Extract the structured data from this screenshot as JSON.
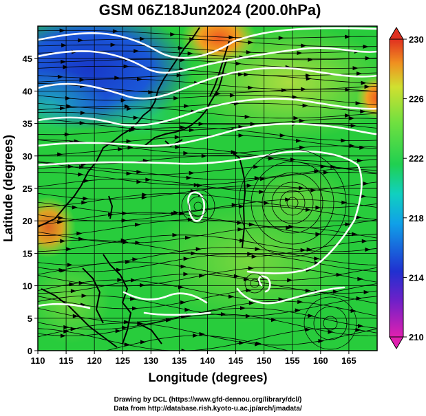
{
  "title": "GSM 06Z18Jun2024 (200.0hPa)",
  "xlabel": "Longitude (degrees)",
  "ylabel": "Latitude  (degrees)",
  "credits": [
    "Drawing by DCL (https://www.gfd-dennou.org/library/dcl/)",
    "Data from http://database.rish.kyoto-u.ac.jp/arch/jmadata/"
  ],
  "chart_data": {
    "type": "heatmap",
    "xlim": [
      110,
      170
    ],
    "ylim": [
      0,
      50
    ],
    "x_ticks": [
      "110",
      "115",
      "120",
      "125",
      "130",
      "135",
      "140",
      "145",
      "150",
      "155",
      "160",
      "165"
    ],
    "y_ticks": [
      "0",
      "5",
      "10",
      "15",
      "20",
      "25",
      "30",
      "35",
      "40",
      "45"
    ],
    "grid": true,
    "colorbar": {
      "range": [
        210,
        230
      ],
      "ticks": [
        "210",
        "214",
        "218",
        "222",
        "226",
        "230"
      ],
      "colors": [
        "#e020b0",
        "#3020c0",
        "#1070e0",
        "#10c0d8",
        "#20d050",
        "#60e040",
        "#b0e040",
        "#f0a020",
        "#e04020"
      ]
    },
    "features": [
      "streamlines",
      "white contour lines",
      "coastlines",
      "cyclonic circulation near 155E 25N",
      "circulation near 138E 25N"
    ]
  }
}
